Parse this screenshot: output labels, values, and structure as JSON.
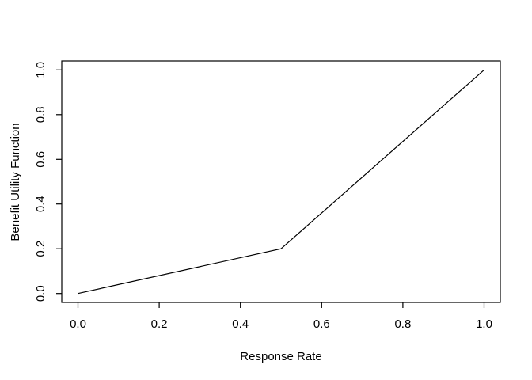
{
  "chart_data": {
    "type": "line",
    "title": "",
    "xlabel": "Response Rate",
    "ylabel": "Benefit Utility Function",
    "x": [
      0.0,
      0.5,
      1.0
    ],
    "y": [
      0.0,
      0.2,
      1.0
    ],
    "xlim": [
      0.0,
      1.0
    ],
    "ylim": [
      0.0,
      1.0
    ],
    "x_ticks": [
      0.0,
      0.2,
      0.4,
      0.6,
      0.8,
      1.0
    ],
    "x_tick_labels": [
      "0.0",
      "0.2",
      "0.4",
      "0.6",
      "0.8",
      "1.0"
    ],
    "y_ticks": [
      0.0,
      0.2,
      0.4,
      0.6,
      0.8,
      1.0
    ],
    "y_tick_labels": [
      "0.0",
      "0.2",
      "0.4",
      "0.6",
      "0.8",
      "1.0"
    ],
    "grid": false,
    "legend": "none",
    "line_color": "#000000",
    "axis_color": "#000000",
    "background_color": "#ffffff"
  }
}
